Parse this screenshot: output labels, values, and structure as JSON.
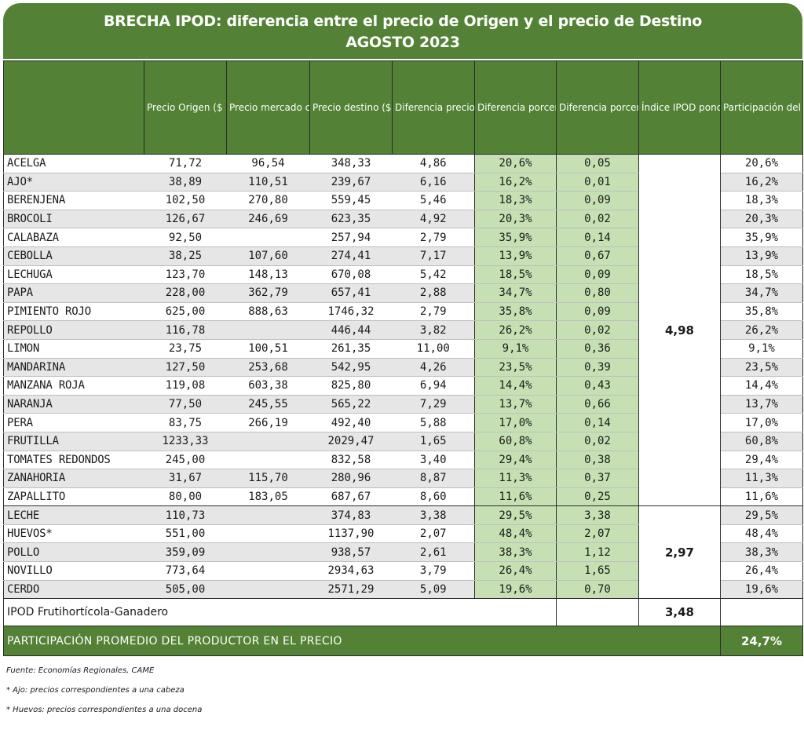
{
  "title": {
    "line1": "BRECHA IPOD: diferencia entre el precio de Origen y el precio de Destino",
    "line2": "AGOSTO 2023"
  },
  "headers": {
    "product": "",
    "origin": "Precio Origen ($ por KG)",
    "market": "Precio mercado concentrador ($ por KG)",
    "destination": "Precio destino ($ por KG)",
    "diff": "Diferencia precio destino/origen",
    "diff_pct": "Diferencia porcentual destino/origen",
    "diff_pond": "Diferencia porcentual destino/origen (PONDERADA)",
    "ipod": "Índice IPOD ponderado",
    "participation": "Participación del productor en el precio de góndola"
  },
  "group_fruit": {
    "ipod": "4,98",
    "rows": [
      {
        "name": "ACELGA",
        "origin": "71,72",
        "market": "96,54",
        "destination": "348,33",
        "diff": "4,86",
        "diff_pct": "20,6%",
        "diff_pond": "0,05",
        "participation": "20,6%"
      },
      {
        "name": "AJO*",
        "origin": "38,89",
        "market": "110,51",
        "destination": "239,67",
        "diff": "6,16",
        "diff_pct": "16,2%",
        "diff_pond": "0,01",
        "participation": "16,2%"
      },
      {
        "name": "BERENJENA",
        "origin": "102,50",
        "market": "270,80",
        "destination": "559,45",
        "diff": "5,46",
        "diff_pct": "18,3%",
        "diff_pond": "0,09",
        "participation": "18,3%"
      },
      {
        "name": "BROCOLI",
        "origin": "126,67",
        "market": "246,69",
        "destination": "623,35",
        "diff": "4,92",
        "diff_pct": "20,3%",
        "diff_pond": "0,02",
        "participation": "20,3%"
      },
      {
        "name": "CALABAZA",
        "origin": "92,50",
        "market": "",
        "destination": "257,94",
        "diff": "2,79",
        "diff_pct": "35,9%",
        "diff_pond": "0,14",
        "participation": "35,9%"
      },
      {
        "name": "CEBOLLA",
        "origin": "38,25",
        "market": "107,60",
        "destination": "274,41",
        "diff": "7,17",
        "diff_pct": "13,9%",
        "diff_pond": "0,67",
        "participation": "13,9%"
      },
      {
        "name": "LECHUGA",
        "origin": "123,70",
        "market": "148,13",
        "destination": "670,08",
        "diff": "5,42",
        "diff_pct": "18,5%",
        "diff_pond": "0,09",
        "participation": "18,5%"
      },
      {
        "name": "PAPA",
        "origin": "228,00",
        "market": "362,79",
        "destination": "657,41",
        "diff": "2,88",
        "diff_pct": "34,7%",
        "diff_pond": "0,80",
        "participation": "34,7%"
      },
      {
        "name": "PIMIENTO ROJO",
        "origin": "625,00",
        "market": "888,63",
        "destination": "1746,32",
        "diff": "2,79",
        "diff_pct": "35,8%",
        "diff_pond": "0,09",
        "participation": "35,8%"
      },
      {
        "name": "REPOLLO",
        "origin": "116,78",
        "market": "",
        "destination": "446,44",
        "diff": "3,82",
        "diff_pct": "26,2%",
        "diff_pond": "0,02",
        "participation": "26,2%"
      },
      {
        "name": "LIMON",
        "origin": "23,75",
        "market": "100,51",
        "destination": "261,35",
        "diff": "11,00",
        "diff_pct": "9,1%",
        "diff_pond": "0,36",
        "participation": "9,1%"
      },
      {
        "name": "MANDARINA",
        "origin": "127,50",
        "market": "253,68",
        "destination": "542,95",
        "diff": "4,26",
        "diff_pct": "23,5%",
        "diff_pond": "0,39",
        "participation": "23,5%"
      },
      {
        "name": "MANZANA ROJA",
        "origin": "119,08",
        "market": "603,38",
        "destination": "825,80",
        "diff": "6,94",
        "diff_pct": "14,4%",
        "diff_pond": "0,43",
        "participation": "14,4%"
      },
      {
        "name": "NARANJA",
        "origin": "77,50",
        "market": "245,55",
        "destination": "565,22",
        "diff": "7,29",
        "diff_pct": "13,7%",
        "diff_pond": "0,66",
        "participation": "13,7%"
      },
      {
        "name": "PERA",
        "origin": "83,75",
        "market": "266,19",
        "destination": "492,40",
        "diff": "5,88",
        "diff_pct": "17,0%",
        "diff_pond": "0,14",
        "participation": "17,0%"
      },
      {
        "name": "FRUTILLA",
        "origin": "1233,33",
        "market": "",
        "destination": "2029,47",
        "diff": "1,65",
        "diff_pct": "60,8%",
        "diff_pond": "0,02",
        "participation": "60,8%"
      },
      {
        "name": "TOMATES REDONDOS",
        "origin": "245,00",
        "market": "",
        "destination": "832,58",
        "diff": "3,40",
        "diff_pct": "29,4%",
        "diff_pond": "0,38",
        "participation": "29,4%"
      },
      {
        "name": "ZANAHORIA",
        "origin": "31,67",
        "market": "115,70",
        "destination": "280,96",
        "diff": "8,87",
        "diff_pct": "11,3%",
        "diff_pond": "0,37",
        "participation": "11,3%"
      },
      {
        "name": "ZAPALLITO",
        "origin": "80,00",
        "market": "183,05",
        "destination": "687,67",
        "diff": "8,60",
        "diff_pct": "11,6%",
        "diff_pond": "0,25",
        "participation": "11,6%"
      }
    ]
  },
  "group_livestock": {
    "ipod": "2,97",
    "rows": [
      {
        "name": "LECHE",
        "origin": "110,73",
        "market": "",
        "destination": "374,83",
        "diff": "3,38",
        "diff_pct": "29,5%",
        "diff_pond": "3,38",
        "participation": "29,5%"
      },
      {
        "name": "HUEVOS*",
        "origin": "551,00",
        "market": "",
        "destination": "1137,90",
        "diff": "2,07",
        "diff_pct": "48,4%",
        "diff_pond": "2,07",
        "participation": "48,4%"
      },
      {
        "name": "POLLO",
        "origin": "359,09",
        "market": "",
        "destination": "938,57",
        "diff": "2,61",
        "diff_pct": "38,3%",
        "diff_pond": "1,12",
        "participation": "38,3%"
      },
      {
        "name": "NOVILLO",
        "origin": "773,64",
        "market": "",
        "destination": "2934,63",
        "diff": "3,79",
        "diff_pct": "26,4%",
        "diff_pond": "1,65",
        "participation": "26,4%"
      },
      {
        "name": "CERDO",
        "origin": "505,00",
        "market": "",
        "destination": "2571,29",
        "diff": "5,09",
        "diff_pct": "19,6%",
        "diff_pond": "0,70",
        "participation": "19,6%"
      }
    ]
  },
  "total": {
    "label": "IPOD Frutihortícola-Ganadero",
    "value": "3,48"
  },
  "average": {
    "label": "PARTICIPACIÓN PROMEDIO DEL PRODUCTOR EN EL PRECIO",
    "value": "24,7%"
  },
  "notes": [
    "Fuente: Economías Regionales, CAME",
    "* Ajo: precios correspondientes a una cabeza",
    "* Huevos: precios correspondientes a una docena"
  ],
  "colors": {
    "header_green": "#538135",
    "highlight_green": "#c6e0b4",
    "row_alt_gray": "#e6e6e6"
  }
}
